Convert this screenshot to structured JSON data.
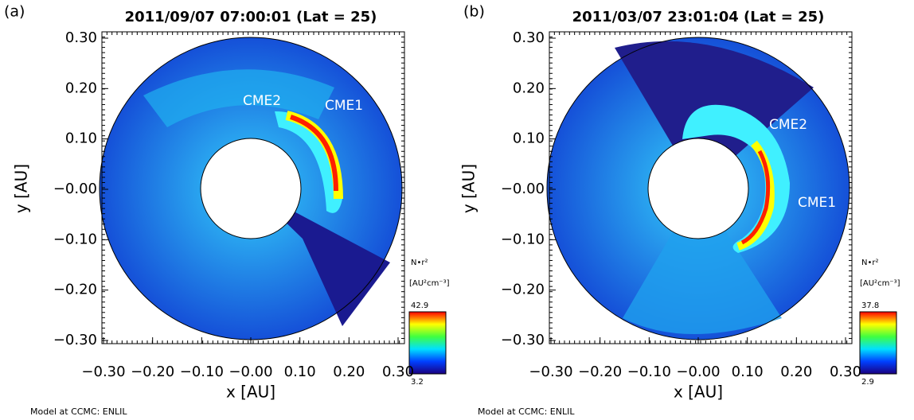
{
  "panels": [
    {
      "label": "(a)",
      "title": "2011/09/07 07:00:01 (Lat = 25)",
      "x_label": "x [AU]",
      "y_label": "y [AU]",
      "xticks": [
        "−0.30",
        "−0.20",
        "−0.10",
        "−0.00",
        "0.10",
        "0.20",
        "0.30"
      ],
      "yticks": [
        "0.30",
        "0.20",
        "0.10",
        "−0.00",
        "−0.10",
        "−0.20",
        "−0.30"
      ],
      "annotations": [
        {
          "text": "CME2"
        },
        {
          "text": "CME1"
        }
      ],
      "colorbar": {
        "quantity": "N•r²",
        "units": "[AU²cm⁻³]",
        "max": "42.9",
        "min": "3.2"
      },
      "footer": "Model at CCMC: ENLIL"
    },
    {
      "label": "(b)",
      "title": "2011/03/07 23:01:04 (Lat = 25)",
      "x_label": "x [AU]",
      "y_label": "y [AU]",
      "xticks": [
        "−0.30",
        "−0.20",
        "−0.10",
        "−0.00",
        "0.10",
        "0.20",
        "0.30"
      ],
      "yticks": [
        "0.30",
        "0.20",
        "0.10",
        "−0.00",
        "−0.10",
        "−0.20",
        "−0.30"
      ],
      "annotations": [
        {
          "text": "CME2"
        },
        {
          "text": "CME1"
        }
      ],
      "colorbar": {
        "quantity": "N•r²",
        "units": "[AU²cm⁻³]",
        "max": "37.8",
        "min": "2.9"
      },
      "footer": "Model at CCMC: ENLIL"
    }
  ]
}
